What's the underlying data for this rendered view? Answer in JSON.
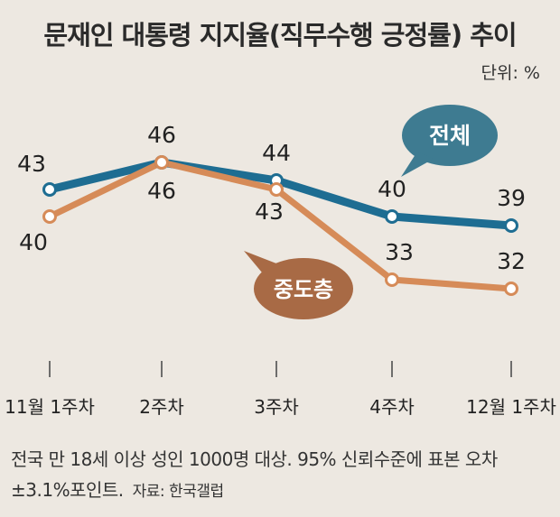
{
  "title": "문재인 대통령 지지율(직무수행 긍정률) 추이",
  "unit": "단위: %",
  "footnote": "전국 만 18세 이상 성인 1000명 대상. 95% 신뢰수준에 표본 오차 ±3.1%포인트.",
  "source": "자료: 한국갤럽",
  "colors": {
    "overall": "#1e6d92",
    "middle": "#d68b58",
    "overall_bubble": "#3e7b91",
    "middle_bubble": "#a86a45"
  },
  "chart_data": {
    "type": "line",
    "categories": [
      "11월 1주차",
      "2주차",
      "3주차",
      "4주차",
      "12월 1주차"
    ],
    "series": [
      {
        "name": "전체",
        "values": [
          43,
          46,
          44,
          40,
          39
        ]
      },
      {
        "name": "중도층",
        "values": [
          40,
          46,
          43,
          33,
          32
        ]
      }
    ],
    "ylabel": "%",
    "grid": false,
    "legend": "callout bubbles"
  }
}
